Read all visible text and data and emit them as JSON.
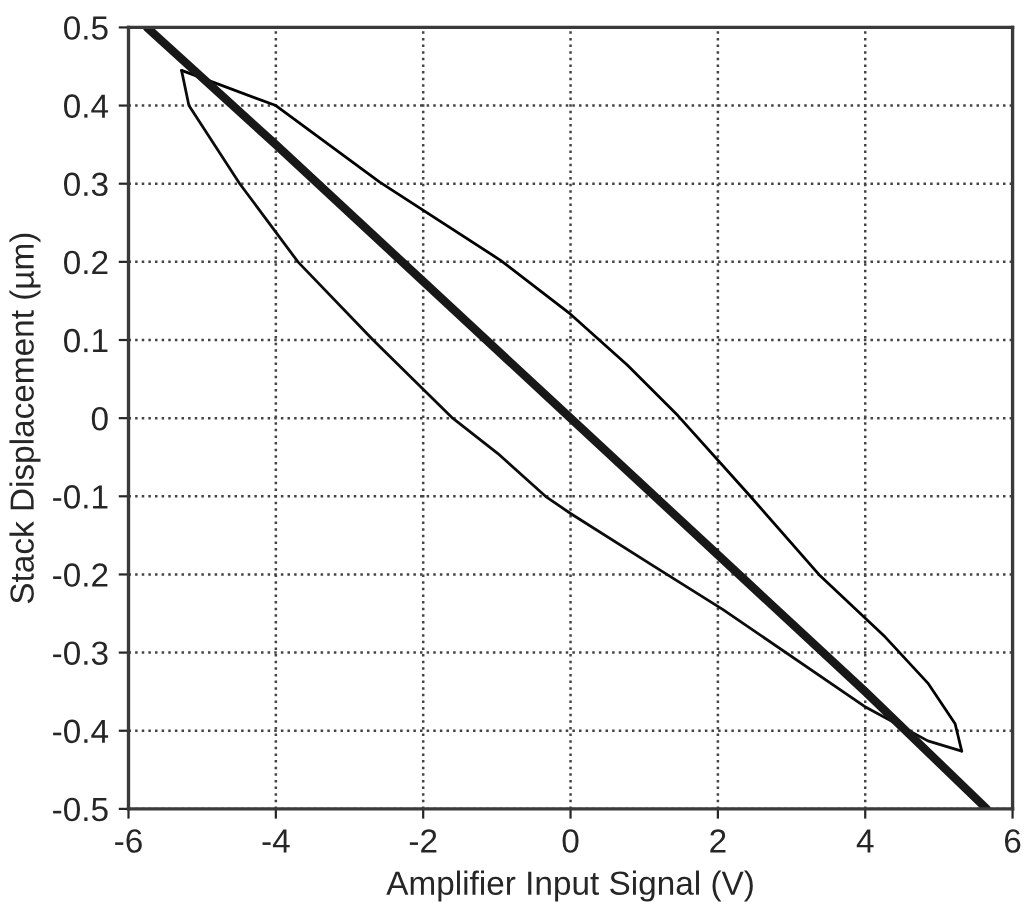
{
  "chart_data": {
    "type": "line",
    "xlabel": "Amplifier Input Signal (V)",
    "ylabel": "Stack Displacement (µm)",
    "xlim": [
      -6,
      6
    ],
    "xticks": [
      -6,
      -4,
      -2,
      0,
      2,
      4,
      6
    ],
    "ylim": [
      -0.5,
      0.5
    ],
    "yticks": [
      -0.5,
      -0.4,
      -0.3,
      -0.2,
      -0.1,
      0,
      0.1,
      0.2,
      0.3,
      0.4,
      0.5
    ],
    "grid": true,
    "marker": "none",
    "series": [
      {
        "color": "#000000",
        "x": [
          -5.28,
          -4.0,
          -2.59,
          -0.95,
          0,
          0.77,
          1.46,
          2.44,
          3.37,
          4.25,
          4.85,
          5.22,
          5.31
        ],
        "values": [
          0.445,
          0.4,
          0.302,
          0.202,
          0.133,
          0.068,
          0.003,
          -0.1,
          -0.2,
          -0.278,
          -0.339,
          -0.391,
          -0.426
        ]
      },
      {
        "color": "#0c0c0c",
        "x": [
          -5.28,
          -5.18,
          -4.49,
          -3.7,
          -2.68,
          -1.6,
          -0.99,
          -0.34,
          0,
          1.14,
          2.07,
          4.01,
          4.85,
          5.31
        ],
        "values": [
          0.445,
          0.4,
          0.3,
          0.2,
          0.1,
          0,
          -0.045,
          -0.1,
          -0.122,
          -0.19,
          -0.245,
          -0.37,
          -0.413,
          -0.426
        ]
      },
      {
        "color": "#181818",
        "x": [
          -5.75,
          -4,
          -2,
          0,
          2,
          4,
          5.65
        ],
        "values": [
          0.5,
          0.35,
          0.175,
          0,
          -0.175,
          -0.35,
          -0.5
        ]
      }
    ]
  }
}
